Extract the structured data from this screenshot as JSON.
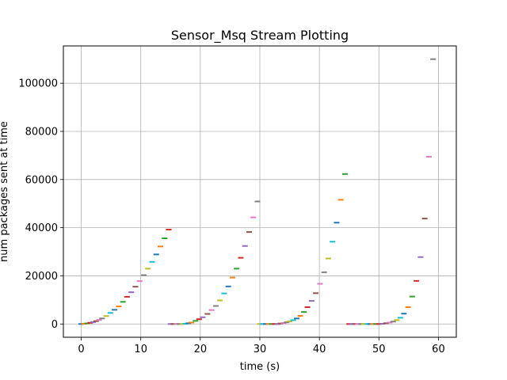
{
  "chart_data": {
    "type": "scatter",
    "marker": "horizontal-dash",
    "title": "Sensor_Msq Stream Plotting",
    "xlabel": "time (s)",
    "ylabel": "num packages sent at time",
    "xlim": [
      -3,
      63
    ],
    "ylim": [
      -5500,
      115500
    ],
    "xticks": [
      0,
      10,
      20,
      30,
      40,
      50,
      60
    ],
    "yticks": [
      0,
      20000,
      40000,
      60000,
      80000,
      100000
    ],
    "grid": true,
    "colors": [
      "#1f77b4",
      "#ff7f0e",
      "#2ca02c",
      "#d62728",
      "#9467bd",
      "#8c564b",
      "#e377c2",
      "#7f7f7f",
      "#bcbd22",
      "#17becf"
    ],
    "points": [
      {
        "x": 0.0,
        "y": 0
      },
      {
        "x": 0.5,
        "y": 100
      },
      {
        "x": 1.0,
        "y": 250
      },
      {
        "x": 1.5,
        "y": 500
      },
      {
        "x": 2.0,
        "y": 800
      },
      {
        "x": 2.5,
        "y": 1200
      },
      {
        "x": 3.0,
        "y": 1700
      },
      {
        "x": 3.5,
        "y": 2300
      },
      {
        "x": 4.2,
        "y": 3300
      },
      {
        "x": 4.9,
        "y": 4600
      },
      {
        "x": 5.6,
        "y": 5900
      },
      {
        "x": 6.3,
        "y": 7300
      },
      {
        "x": 7.0,
        "y": 9200
      },
      {
        "x": 7.7,
        "y": 11300
      },
      {
        "x": 8.4,
        "y": 13200
      },
      {
        "x": 9.1,
        "y": 15500
      },
      {
        "x": 9.8,
        "y": 17800
      },
      {
        "x": 10.5,
        "y": 20300
      },
      {
        "x": 11.2,
        "y": 23000
      },
      {
        "x": 11.9,
        "y": 25800
      },
      {
        "x": 12.6,
        "y": 28900
      },
      {
        "x": 13.3,
        "y": 32200
      },
      {
        "x": 14.0,
        "y": 35600
      },
      {
        "x": 14.7,
        "y": 39200
      },
      {
        "x": 15.0,
        "y": 0
      },
      {
        "x": 15.5,
        "y": 0
      },
      {
        "x": 16.0,
        "y": 0
      },
      {
        "x": 16.5,
        "y": 0
      },
      {
        "x": 17.0,
        "y": 0
      },
      {
        "x": 17.5,
        "y": 100
      },
      {
        "x": 18.0,
        "y": 300
      },
      {
        "x": 18.5,
        "y": 600
      },
      {
        "x": 19.2,
        "y": 1300
      },
      {
        "x": 19.8,
        "y": 2000
      },
      {
        "x": 20.4,
        "y": 2800
      },
      {
        "x": 21.2,
        "y": 4200
      },
      {
        "x": 21.9,
        "y": 5800
      },
      {
        "x": 22.6,
        "y": 7500
      },
      {
        "x": 23.3,
        "y": 9800
      },
      {
        "x": 24.0,
        "y": 12700
      },
      {
        "x": 24.7,
        "y": 15600
      },
      {
        "x": 25.4,
        "y": 19300
      },
      {
        "x": 26.1,
        "y": 23000
      },
      {
        "x": 26.8,
        "y": 27500
      },
      {
        "x": 27.5,
        "y": 32400
      },
      {
        "x": 28.2,
        "y": 38200
      },
      {
        "x": 28.9,
        "y": 44300
      },
      {
        "x": 29.6,
        "y": 50900
      },
      {
        "x": 30.0,
        "y": 0
      },
      {
        "x": 30.5,
        "y": 0
      },
      {
        "x": 31.0,
        "y": 0
      },
      {
        "x": 31.5,
        "y": 0
      },
      {
        "x": 32.0,
        "y": 0
      },
      {
        "x": 32.5,
        "y": 0
      },
      {
        "x": 33.0,
        "y": 0
      },
      {
        "x": 33.5,
        "y": 200
      },
      {
        "x": 34.0,
        "y": 400
      },
      {
        "x": 34.5,
        "y": 700
      },
      {
        "x": 35.0,
        "y": 1100
      },
      {
        "x": 35.6,
        "y": 1600
      },
      {
        "x": 36.2,
        "y": 2300
      },
      {
        "x": 36.8,
        "y": 3400
      },
      {
        "x": 37.4,
        "y": 5000
      },
      {
        "x": 38.0,
        "y": 7000
      },
      {
        "x": 38.7,
        "y": 9600
      },
      {
        "x": 39.4,
        "y": 12800
      },
      {
        "x": 40.1,
        "y": 16700
      },
      {
        "x": 40.8,
        "y": 21500
      },
      {
        "x": 41.5,
        "y": 27200
      },
      {
        "x": 42.2,
        "y": 34200
      },
      {
        "x": 42.9,
        "y": 42100
      },
      {
        "x": 43.6,
        "y": 51600
      },
      {
        "x": 44.3,
        "y": 62300
      },
      {
        "x": 45.0,
        "y": 0
      },
      {
        "x": 45.5,
        "y": 0
      },
      {
        "x": 46.0,
        "y": 0
      },
      {
        "x": 46.5,
        "y": 0
      },
      {
        "x": 47.0,
        "y": 0
      },
      {
        "x": 47.5,
        "y": 0
      },
      {
        "x": 48.0,
        "y": 0
      },
      {
        "x": 48.5,
        "y": 0
      },
      {
        "x": 49.0,
        "y": 0
      },
      {
        "x": 49.5,
        "y": 0
      },
      {
        "x": 50.0,
        "y": 0
      },
      {
        "x": 50.6,
        "y": 100
      },
      {
        "x": 51.2,
        "y": 300
      },
      {
        "x": 51.8,
        "y": 600
      },
      {
        "x": 52.4,
        "y": 1000
      },
      {
        "x": 53.0,
        "y": 1600
      },
      {
        "x": 53.6,
        "y": 2600
      },
      {
        "x": 54.2,
        "y": 4300
      },
      {
        "x": 54.9,
        "y": 7000
      },
      {
        "x": 55.6,
        "y": 11400
      },
      {
        "x": 56.3,
        "y": 17900
      },
      {
        "x": 57.0,
        "y": 27800
      },
      {
        "x": 57.7,
        "y": 43800
      },
      {
        "x": 58.4,
        "y": 69500
      },
      {
        "x": 59.1,
        "y": 110000
      }
    ]
  }
}
